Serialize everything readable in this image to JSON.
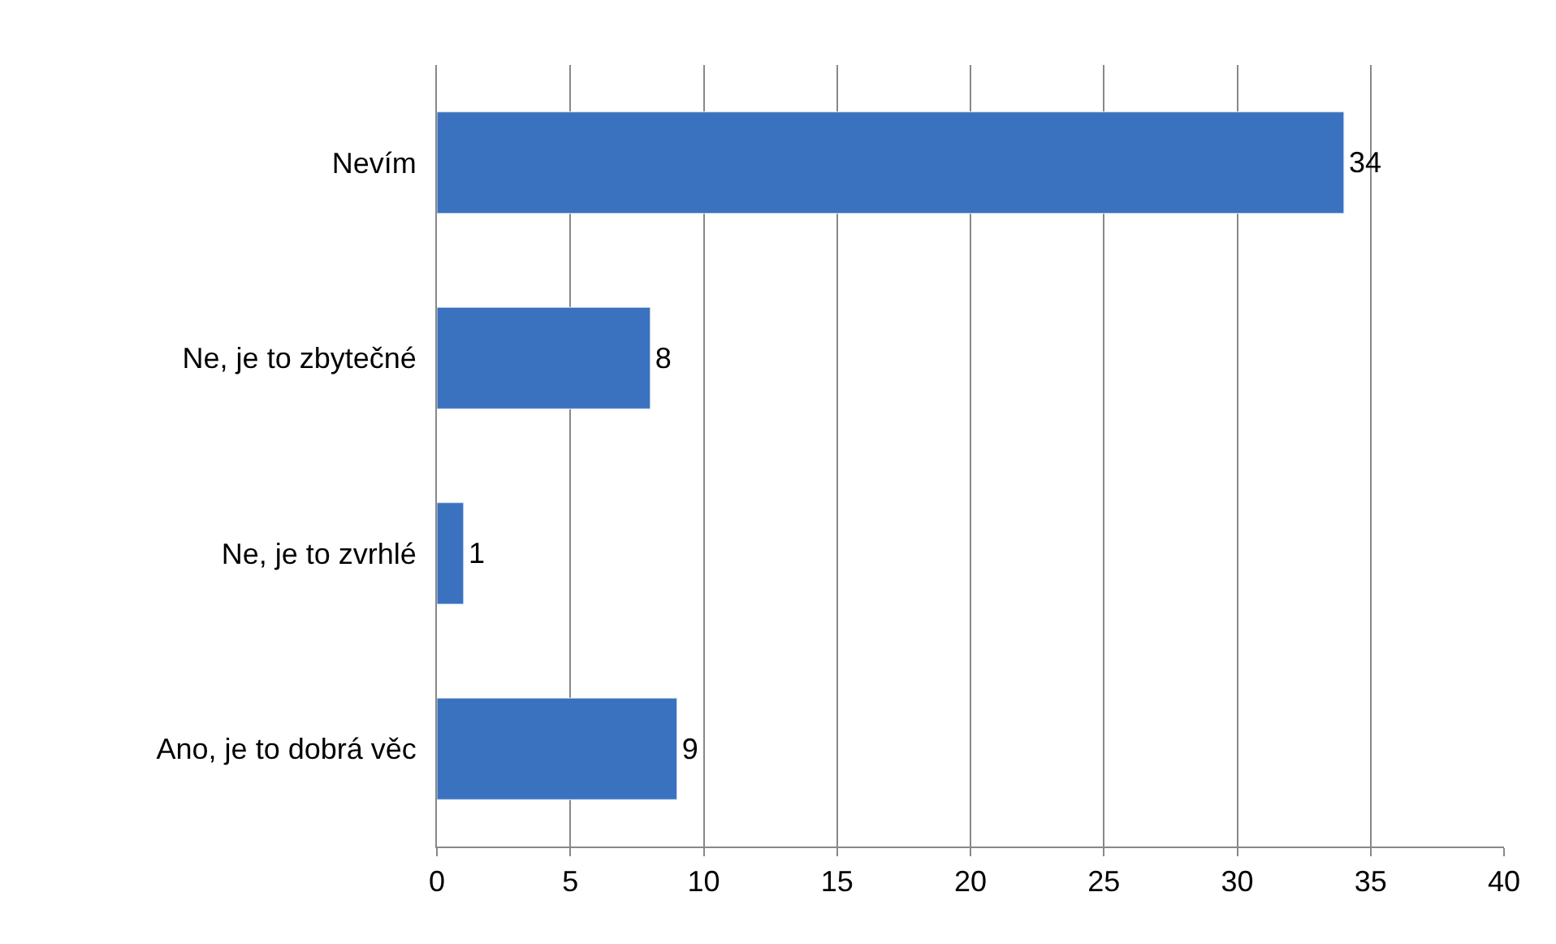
{
  "chart_data": {
    "type": "bar",
    "orientation": "horizontal",
    "categories": [
      "Nevím",
      "Ne, je to zbytečné",
      "Ne, je to zvrhlé",
      "Ano, je to dobrá věc"
    ],
    "values": [
      34,
      8,
      1,
      9
    ],
    "color": "#3a72c0",
    "xlim": [
      0,
      40
    ],
    "xticks": [
      0,
      5,
      10,
      15,
      20,
      25,
      30,
      35,
      40
    ],
    "grid": "x",
    "data_labels": true
  }
}
